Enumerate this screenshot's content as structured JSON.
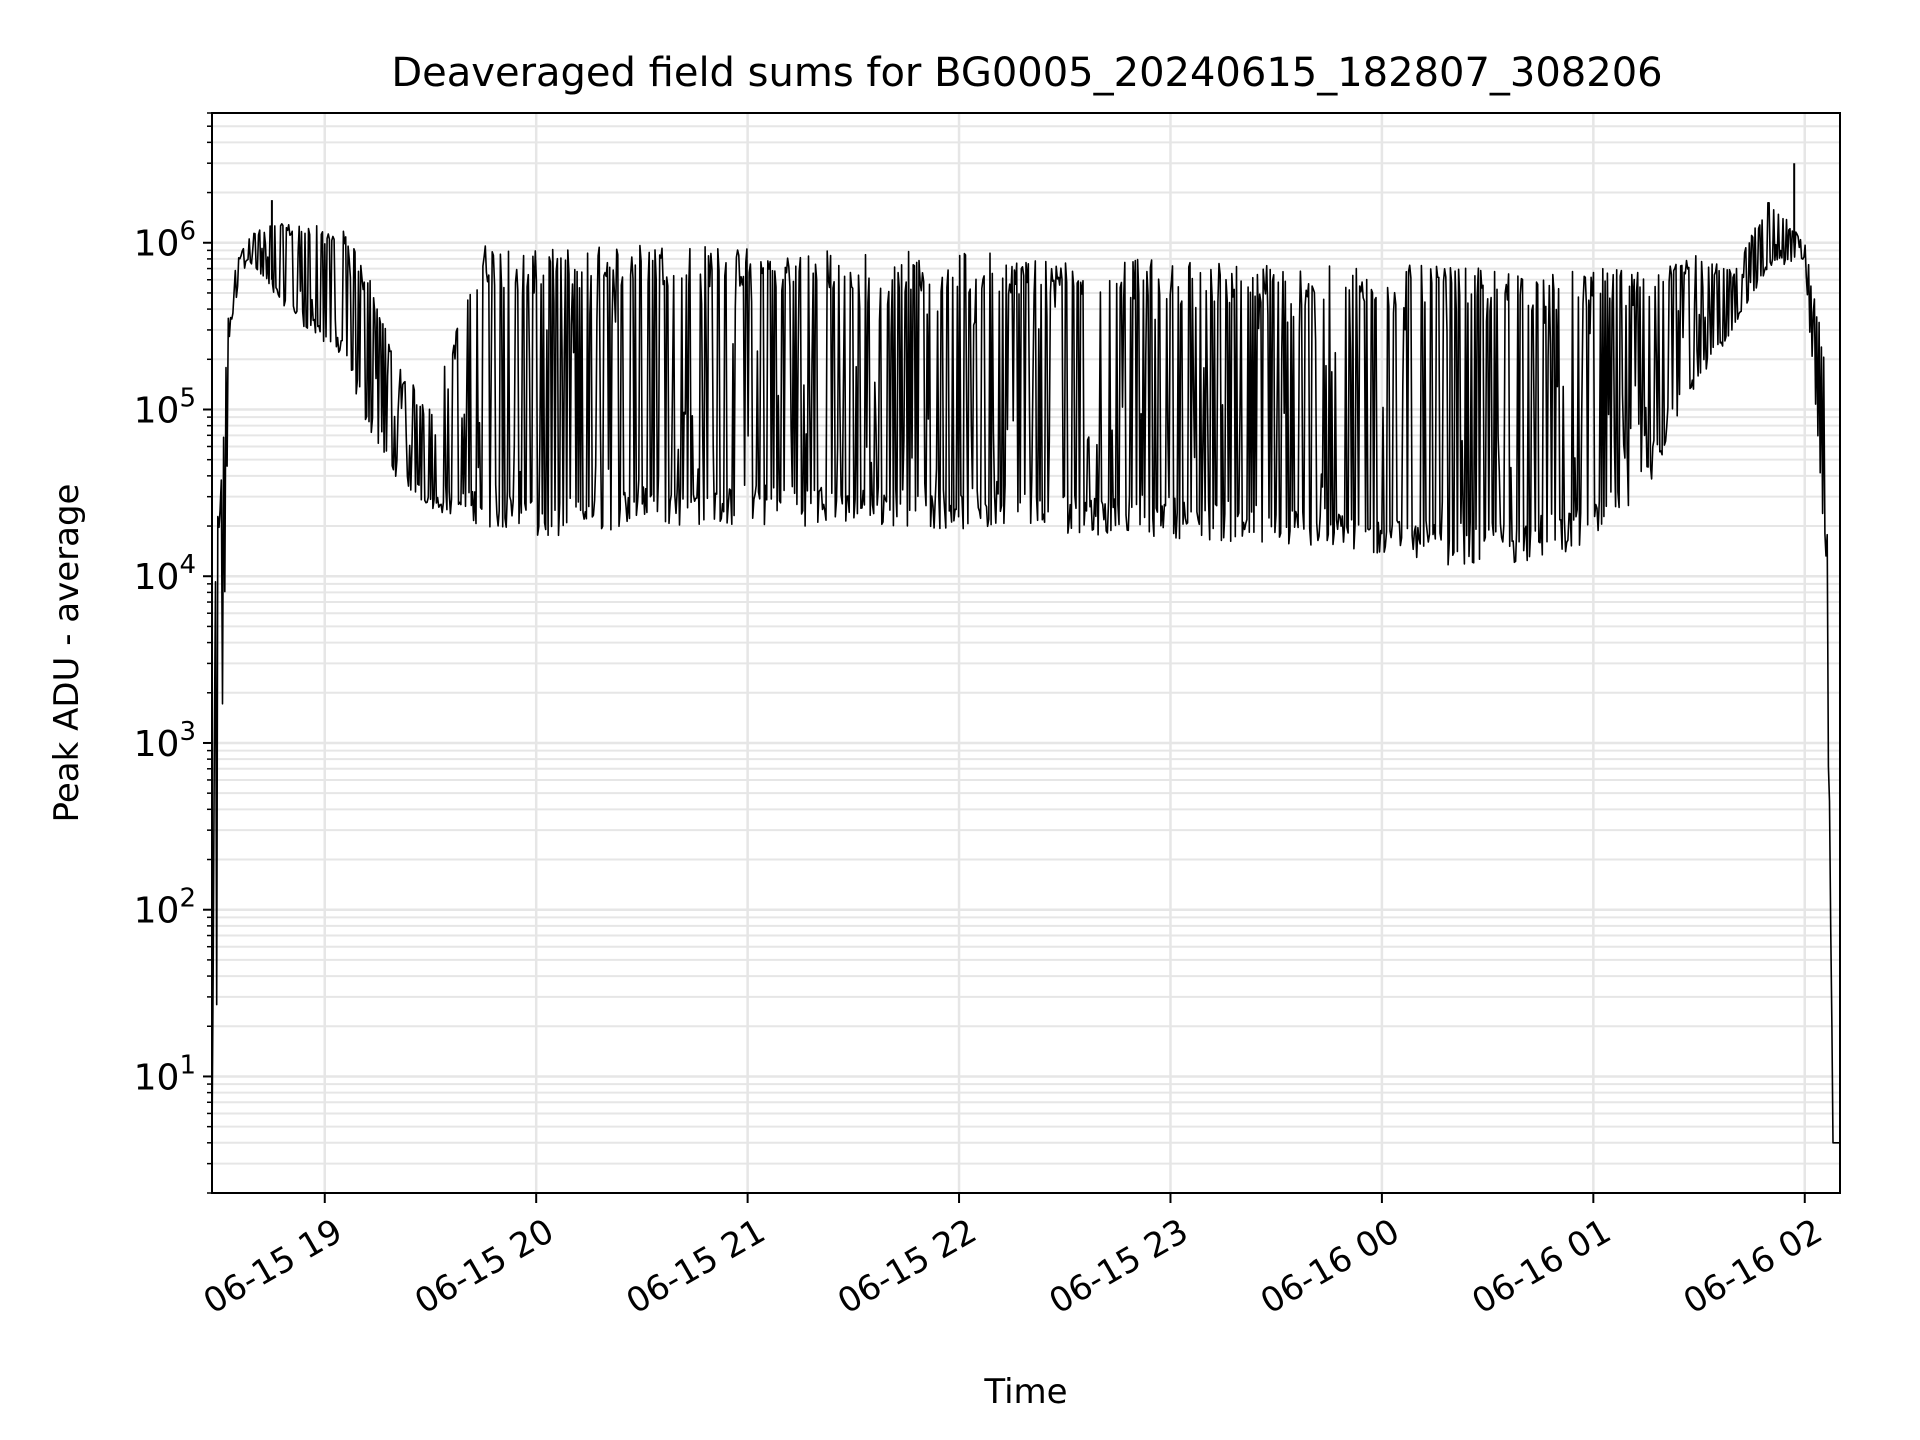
{
  "chart_data": {
    "type": "line",
    "title": "Deaveraged field sums for BG0005_20240615_182807_308206",
    "xlabel": "Time",
    "ylabel": "Peak ADU - average",
    "y_scale": "log",
    "ylim": [
      2,
      6000000
    ],
    "xlim": [
      "2024-06-15 18:28",
      "2024-06-16 02:10"
    ],
    "grid": true,
    "grid_minor": true,
    "line_color": "#000000",
    "grid_color": "#e6e6e6",
    "x_ticks": [
      {
        "label": "06-15 19",
        "t": "2024-06-15 19:00"
      },
      {
        "label": "06-15 20",
        "t": "2024-06-15 20:00"
      },
      {
        "label": "06-15 21",
        "t": "2024-06-15 21:00"
      },
      {
        "label": "06-15 22",
        "t": "2024-06-15 22:00"
      },
      {
        "label": "06-15 23",
        "t": "2024-06-15 23:00"
      },
      {
        "label": "06-16 00",
        "t": "2024-06-16 00:00"
      },
      {
        "label": "06-16 01",
        "t": "2024-06-16 01:00"
      },
      {
        "label": "06-16 02",
        "t": "2024-06-16 02:00"
      }
    ],
    "y_ticks": [
      {
        "base": "10",
        "exp": "1",
        "value": 10
      },
      {
        "base": "10",
        "exp": "2",
        "value": 100
      },
      {
        "base": "10",
        "exp": "3",
        "value": 1000
      },
      {
        "base": "10",
        "exp": "4",
        "value": 10000
      },
      {
        "base": "10",
        "exp": "5",
        "value": 100000
      },
      {
        "base": "10",
        "exp": "6",
        "value": 1000000
      }
    ],
    "series": [
      {
        "envelope": [
          {
            "t": "2024-06-15 18:28",
            "low": 4,
            "high": 4
          },
          {
            "t": "2024-06-15 18:29",
            "low": 4,
            "high": 15000
          },
          {
            "t": "2024-06-15 18:33",
            "low": 300000,
            "high": 600000
          },
          {
            "t": "2024-06-15 18:38",
            "low": 800000,
            "high": 1100000
          },
          {
            "t": "2024-06-15 18:45",
            "low": 500000,
            "high": 1300000
          },
          {
            "t": "2024-06-15 18:55",
            "low": 300000,
            "high": 1300000
          },
          {
            "t": "2024-06-15 19:05",
            "low": 200000,
            "high": 1200000
          },
          {
            "t": "2024-06-15 19:12",
            "low": 80000,
            "high": 700000
          },
          {
            "t": "2024-06-15 19:20",
            "low": 40000,
            "high": 200000
          },
          {
            "t": "2024-06-15 19:30",
            "low": 25000,
            "high": 100000
          },
          {
            "t": "2024-06-15 19:45",
            "low": 20000,
            "high": 1000000
          },
          {
            "t": "2024-06-15 20:00",
            "low": 16000,
            "high": 900000
          },
          {
            "t": "2024-06-15 20:30",
            "low": 20000,
            "high": 1000000
          },
          {
            "t": "2024-06-15 21:00",
            "low": 20000,
            "high": 950000
          },
          {
            "t": "2024-06-15 21:30",
            "low": 20000,
            "high": 900000
          },
          {
            "t": "2024-06-15 22:00",
            "low": 19000,
            "high": 900000
          },
          {
            "t": "2024-06-15 22:30",
            "low": 18000,
            "high": 850000
          },
          {
            "t": "2024-06-15 23:00",
            "low": 17000,
            "high": 800000
          },
          {
            "t": "2024-06-15 23:30",
            "low": 15000,
            "high": 750000
          },
          {
            "t": "2024-06-16 00:00",
            "low": 13000,
            "high": 750000
          },
          {
            "t": "2024-06-16 00:30",
            "low": 11000,
            "high": 700000
          },
          {
            "t": "2024-06-16 01:00",
            "low": 15000,
            "high": 700000
          },
          {
            "t": "2024-06-16 01:15",
            "low": 30000,
            "high": 700000
          },
          {
            "t": "2024-06-16 01:25",
            "low": 100000,
            "high": 900000
          },
          {
            "t": "2024-06-16 01:40",
            "low": 300000,
            "high": 700000
          },
          {
            "t": "2024-06-16 01:50",
            "low": 700000,
            "high": 1900000
          },
          {
            "t": "2024-06-16 02:00",
            "low": 800000,
            "high": 1000000
          },
          {
            "t": "2024-06-16 02:06",
            "low": 10000,
            "high": 200000
          },
          {
            "t": "2024-06-16 02:08",
            "low": 4,
            "high": 4
          },
          {
            "t": "2024-06-16 02:10",
            "low": 4,
            "high": 4
          }
        ]
      }
    ],
    "annotations": [
      {
        "t": "2024-06-15 18:45",
        "value": 1800000
      },
      {
        "t": "2024-06-16 01:57",
        "value": 3000000
      }
    ]
  }
}
